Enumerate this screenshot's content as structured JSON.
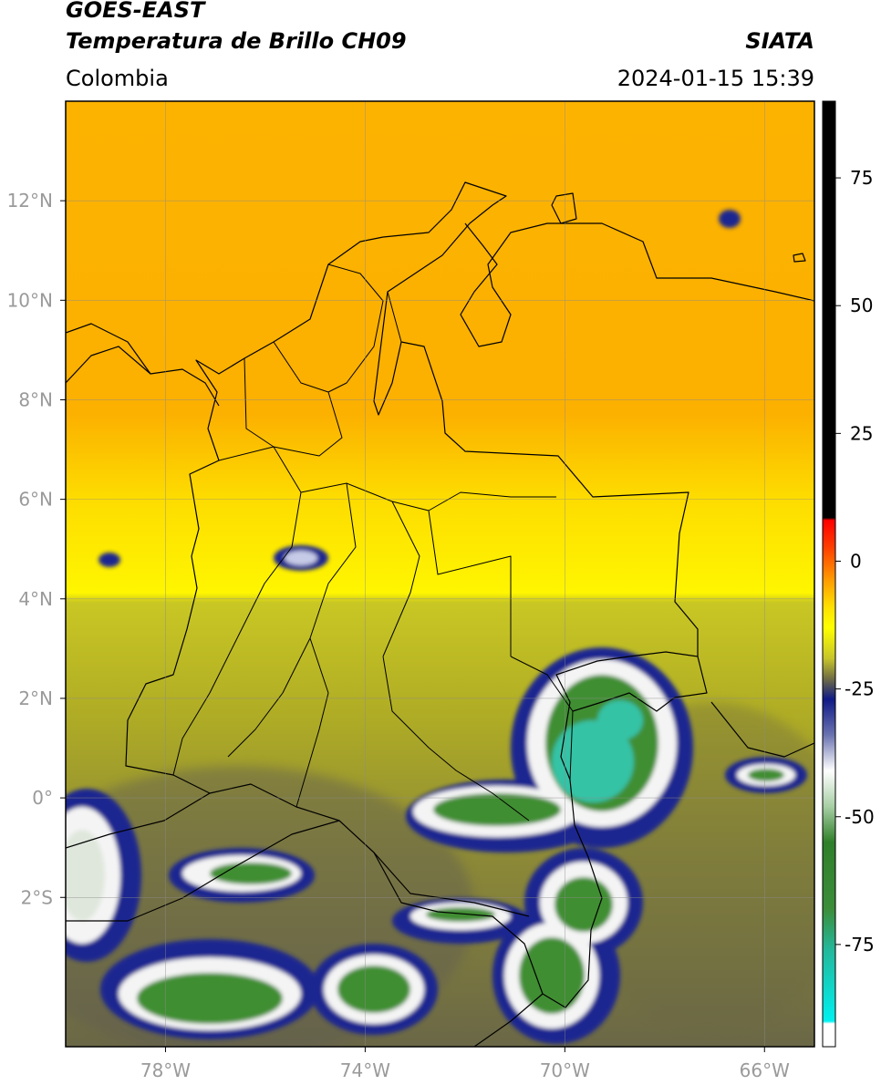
{
  "header": {
    "satellite": "GOES-EAST",
    "product": "Temperatura de Brillo CH09",
    "region": "Colombia",
    "agency": "SIATA",
    "datetime": "2024-01-15 15:39"
  },
  "map": {
    "lon_range": [
      -80,
      -65
    ],
    "lat_range": [
      -5,
      14
    ],
    "lat_ticks": [
      {
        "value": 12,
        "label": "12°N"
      },
      {
        "value": 10,
        "label": "10°N"
      },
      {
        "value": 8,
        "label": "8°N"
      },
      {
        "value": 6,
        "label": "6°N"
      },
      {
        "value": 4,
        "label": "4°N"
      },
      {
        "value": 2,
        "label": "2°N"
      },
      {
        "value": 0,
        "label": "0°"
      },
      {
        "value": -2,
        "label": "2°S"
      }
    ],
    "lon_ticks": [
      {
        "value": -78,
        "label": "78°W"
      },
      {
        "value": -74,
        "label": "74°W"
      },
      {
        "value": -70,
        "label": "70°W"
      },
      {
        "value": -66,
        "label": "66°W"
      }
    ],
    "colors": {
      "orange": "#fbb400",
      "yellow": "#fef800",
      "olive": "#a8a526",
      "dark_olive": "#6f6b3f",
      "navy": "#0a1b8a",
      "white": "#f3f3f3",
      "green": "#3f8e33",
      "teal": "#35c3a6",
      "border": "#000000"
    }
  },
  "colorbar": {
    "range": [
      -95,
      90
    ],
    "ticks": [
      {
        "value": 75,
        "label": "75"
      },
      {
        "value": 50,
        "label": "50"
      },
      {
        "value": 25,
        "label": "25"
      },
      {
        "value": 0,
        "label": "0"
      },
      {
        "value": -25,
        "label": "-25"
      },
      {
        "value": -50,
        "label": "-50"
      },
      {
        "value": -75,
        "label": "-75"
      }
    ],
    "stops": [
      {
        "value": 90,
        "color": "#000000"
      },
      {
        "value": 8.5,
        "color": "#000000"
      },
      {
        "value": 8,
        "color": "#ff0000"
      },
      {
        "value": 3,
        "color": "#ff3a00"
      },
      {
        "value": -4,
        "color": "#ffa000"
      },
      {
        "value": -9,
        "color": "#ffe000"
      },
      {
        "value": -13,
        "color": "#ffff00"
      },
      {
        "value": -19,
        "color": "#c7c52a"
      },
      {
        "value": -23,
        "color": "#706d45"
      },
      {
        "value": -27,
        "color": "#101a86"
      },
      {
        "value": -34,
        "color": "#6a73b0"
      },
      {
        "value": -41,
        "color": "#ffffff"
      },
      {
        "value": -48,
        "color": "#a8cfa5"
      },
      {
        "value": -55,
        "color": "#2f7f2a"
      },
      {
        "value": -68,
        "color": "#3c8d3a"
      },
      {
        "value": -76,
        "color": "#23b89b"
      },
      {
        "value": -90,
        "color": "#00f0f0"
      },
      {
        "value": -90.5,
        "color": "#ffffff"
      },
      {
        "value": -95,
        "color": "#ffffff"
      }
    ]
  }
}
